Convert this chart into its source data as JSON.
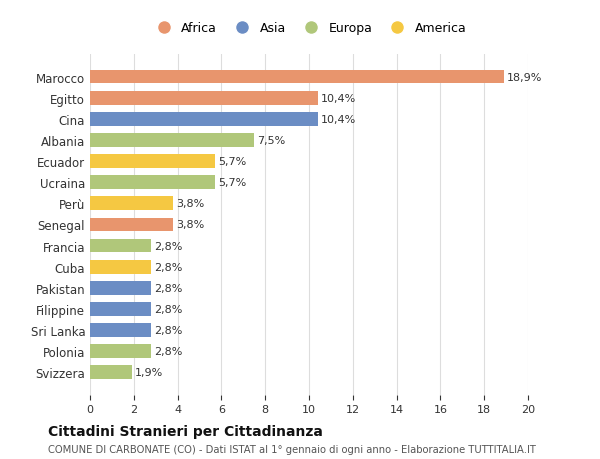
{
  "countries": [
    "Svizzera",
    "Polonia",
    "Sri Lanka",
    "Filippine",
    "Pakistan",
    "Cuba",
    "Francia",
    "Senegal",
    "Perù",
    "Ucraina",
    "Ecuador",
    "Albania",
    "Cina",
    "Egitto",
    "Marocco"
  ],
  "values": [
    1.9,
    2.8,
    2.8,
    2.8,
    2.8,
    2.8,
    2.8,
    3.8,
    3.8,
    5.7,
    5.7,
    7.5,
    10.4,
    10.4,
    18.9
  ],
  "labels": [
    "1,9%",
    "2,8%",
    "2,8%",
    "2,8%",
    "2,8%",
    "2,8%",
    "2,8%",
    "3,8%",
    "3,8%",
    "5,7%",
    "5,7%",
    "7,5%",
    "10,4%",
    "10,4%",
    "18,9%"
  ],
  "colors": [
    "#b0c77a",
    "#b0c77a",
    "#6b8dc4",
    "#6b8dc4",
    "#6b8dc4",
    "#f5c842",
    "#b0c77a",
    "#e8956d",
    "#f5c842",
    "#b0c77a",
    "#f5c842",
    "#b0c77a",
    "#6b8dc4",
    "#e8956d",
    "#e8956d"
  ],
  "legend_names": [
    "Africa",
    "Asia",
    "Europa",
    "America"
  ],
  "legend_colors": [
    "#e8956d",
    "#6b8dc4",
    "#b0c77a",
    "#f5c842"
  ],
  "title": "Cittadini Stranieri per Cittadinanza",
  "subtitle": "COMUNE DI CARBONATE (CO) - Dati ISTAT al 1° gennaio di ogni anno - Elaborazione TUTTITALIA.IT",
  "xlim": [
    0,
    20
  ],
  "xticks": [
    0,
    2,
    4,
    6,
    8,
    10,
    12,
    14,
    16,
    18,
    20
  ],
  "background_color": "#ffffff",
  "grid_color": "#dddddd",
  "bar_height": 0.65
}
